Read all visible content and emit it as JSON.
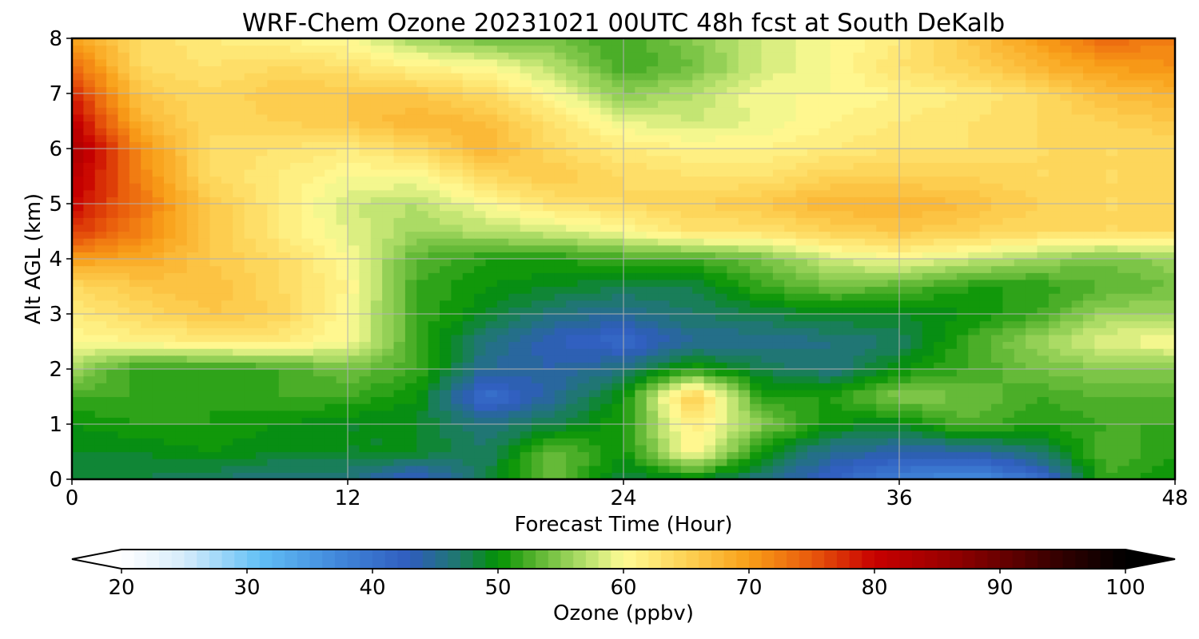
{
  "chart_data": {
    "type": "heatmap",
    "title": "WRF-Chem Ozone  20231021 00UTC 48h fcst at South DeKalb",
    "xlabel": "Forecast Time (Hour)",
    "ylabel": "Alt AGL (km)",
    "xlim": [
      0,
      48
    ],
    "ylim": [
      0,
      8
    ],
    "x_ticks": [
      0,
      12,
      24,
      36,
      48
    ],
    "y_ticks": [
      0,
      1,
      2,
      3,
      4,
      5,
      6,
      7,
      8
    ],
    "grid": true,
    "x_hours": [
      0,
      3,
      6,
      9,
      12,
      15,
      18,
      21,
      24,
      27,
      30,
      33,
      36,
      39,
      42,
      45,
      48
    ],
    "y_km": [
      0,
      0.5,
      1,
      1.5,
      2,
      2.5,
      3,
      3.5,
      4,
      4.5,
      5,
      5.5,
      6,
      6.5,
      7,
      7.5,
      8
    ],
    "z_ppbv": [
      [
        48,
        48,
        47,
        46,
        46,
        42,
        48,
        54,
        48,
        49,
        46,
        42,
        38,
        36,
        40,
        52,
        50
      ],
      [
        49,
        49,
        50,
        49,
        49,
        49,
        47,
        54,
        50,
        61,
        50,
        45,
        44,
        44,
        47,
        53,
        51
      ],
      [
        50,
        51,
        51,
        50,
        49,
        49,
        46,
        48,
        51,
        62,
        55,
        50,
        49,
        53,
        51,
        52,
        52
      ],
      [
        52,
        52,
        51,
        52,
        52,
        50,
        40,
        45,
        50,
        66,
        51,
        51,
        55,
        54,
        52,
        53,
        53
      ],
      [
        56,
        51,
        51,
        52,
        54,
        52,
        45,
        44,
        46,
        51,
        48,
        46,
        50,
        52,
        54,
        55,
        55
      ],
      [
        60,
        61,
        62,
        62,
        60,
        52,
        46,
        43,
        41,
        45,
        45,
        46,
        47,
        52,
        56,
        59,
        60
      ],
      [
        62,
        64,
        66,
        65,
        60,
        52,
        49,
        46,
        45,
        47,
        48,
        49,
        49,
        50,
        52,
        56,
        56
      ],
      [
        64,
        66,
        67,
        64,
        61,
        52,
        50,
        49,
        48,
        48,
        52,
        54,
        53,
        51,
        51,
        53,
        54
      ],
      [
        70,
        69,
        66,
        64,
        60,
        53,
        51,
        51,
        52,
        52,
        54,
        58,
        60,
        58,
        56,
        54,
        56
      ],
      [
        77,
        72,
        66,
        62,
        59,
        56,
        57,
        58,
        60,
        63,
        63,
        65,
        66,
        65,
        64,
        64,
        64
      ],
      [
        80,
        73,
        66,
        62,
        58,
        57,
        60,
        63,
        64,
        65,
        66,
        68,
        68,
        67,
        65,
        64,
        64
      ],
      [
        82,
        72,
        64,
        62,
        60,
        60,
        64,
        66,
        64,
        63,
        63,
        65,
        65,
        65,
        64,
        64,
        64
      ],
      [
        84,
        71,
        64,
        63,
        62,
        64,
        68,
        64,
        62,
        61,
        61,
        62,
        63,
        63,
        64,
        64,
        64
      ],
      [
        81,
        68,
        64,
        65,
        66,
        68,
        67,
        63,
        59,
        58,
        59,
        61,
        62,
        63,
        64,
        65,
        66
      ],
      [
        78,
        66,
        64,
        66,
        66,
        66,
        64,
        60,
        55,
        57,
        60,
        60,
        61,
        62,
        64,
        67,
        68
      ],
      [
        74,
        64,
        63,
        64,
        63,
        61,
        60,
        57,
        52,
        54,
        58,
        60,
        63,
        65,
        68,
        70,
        71
      ],
      [
        70,
        64,
        62,
        61,
        60,
        56,
        54,
        54,
        52,
        55,
        58,
        60,
        62,
        66,
        70,
        74,
        72
      ]
    ]
  },
  "colorbar": {
    "label": "Ozone  (ppbv)",
    "min": 20,
    "max": 100,
    "step": 1,
    "ticks": [
      20,
      30,
      40,
      50,
      60,
      70,
      80,
      90,
      100
    ],
    "extend": "both",
    "stops": [
      {
        "v": 20,
        "c": "#ffffff"
      },
      {
        "v": 25,
        "c": "#d6ecfb"
      },
      {
        "v": 31,
        "c": "#62c0f6"
      },
      {
        "v": 37,
        "c": "#4289dc"
      },
      {
        "v": 43,
        "c": "#2f5cbd"
      },
      {
        "v": 47,
        "c": "#1e7a6a"
      },
      {
        "v": 50,
        "c": "#029202"
      },
      {
        "v": 53,
        "c": "#59b430"
      },
      {
        "v": 57,
        "c": "#b7e06c"
      },
      {
        "v": 60,
        "c": "#fffb95"
      },
      {
        "v": 65,
        "c": "#fdd255"
      },
      {
        "v": 70,
        "c": "#f99f18"
      },
      {
        "v": 75,
        "c": "#e8590c"
      },
      {
        "v": 80,
        "c": "#c80000"
      },
      {
        "v": 85,
        "c": "#a00000"
      },
      {
        "v": 90,
        "c": "#6a0000"
      },
      {
        "v": 95,
        "c": "#300000"
      },
      {
        "v": 100,
        "c": "#000000"
      }
    ]
  }
}
